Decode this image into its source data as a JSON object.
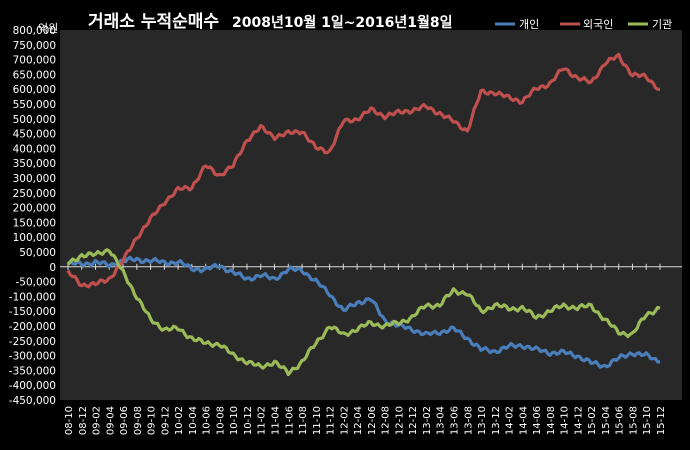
{
  "chart_data": {
    "type": "line",
    "title": "거래소 누적순매수",
    "subtitle": "2008년10월 1일~2016년1월8일",
    "ylabel": "억원",
    "ylim": [
      -450000,
      800000
    ],
    "y_ticks": [
      800000,
      750000,
      700000,
      650000,
      600000,
      550000,
      500000,
      450000,
      400000,
      350000,
      300000,
      250000,
      200000,
      150000,
      100000,
      50000,
      0,
      -50000,
      -100000,
      -150000,
      -200000,
      -250000,
      -300000,
      -350000,
      -400000,
      -450000
    ],
    "y_tick_labels": [
      "800,000",
      "750,000",
      "700,000",
      "650,000",
      "600,000",
      "550,000",
      "500,000",
      "450,000",
      "400,000",
      "350,000",
      "300,000",
      "250,000",
      "200,000",
      "150,000",
      "100,000",
      "50,000",
      "0",
      "-50,000",
      "-100,000",
      "-150,000",
      "-200,000",
      "-250,000",
      "-300,000",
      "-350,000",
      "-400,000",
      "-450,000"
    ],
    "categories": [
      "08-10",
      "08-12",
      "09-02",
      "09-04",
      "09-06",
      "09-08",
      "09-10",
      "09-12",
      "10-02",
      "10-04",
      "10-06",
      "10-08",
      "10-10",
      "10-12",
      "11-02",
      "11-04",
      "11-06",
      "11-08",
      "11-10",
      "11-12",
      "12-02",
      "12-04",
      "12-06",
      "12-08",
      "12-10",
      "12-12",
      "13-02",
      "13-04",
      "13-06",
      "13-08",
      "13-10",
      "13-12",
      "14-02",
      "14-04",
      "14-06",
      "14-08",
      "14-10",
      "14-12",
      "15-02",
      "15-04",
      "15-06",
      "15-08",
      "15-10",
      "15-12"
    ],
    "grid": false,
    "legend_position": "top-right",
    "series": [
      {
        "name": "개인",
        "color": "#4a7ebb",
        "values": [
          10000,
          10000,
          15000,
          5000,
          20000,
          25000,
          20000,
          15000,
          15000,
          -5000,
          -10000,
          5000,
          -20000,
          -40000,
          -30000,
          -40000,
          -10000,
          -10000,
          -50000,
          -90000,
          -150000,
          -120000,
          -110000,
          -180000,
          -200000,
          -210000,
          -230000,
          -220000,
          -210000,
          -240000,
          -280000,
          -285000,
          -270000,
          -265000,
          -280000,
          -290000,
          -290000,
          -300000,
          -325000,
          -335000,
          -310000,
          -290000,
          -300000,
          -320000
        ]
      },
      {
        "name": "외국인",
        "color": "#c0504d",
        "values": [
          -20000,
          -60000,
          -60000,
          -40000,
          20000,
          100000,
          160000,
          220000,
          260000,
          270000,
          340000,
          310000,
          340000,
          430000,
          470000,
          440000,
          450000,
          460000,
          400000,
          390000,
          490000,
          500000,
          530000,
          510000,
          520000,
          530000,
          540000,
          520000,
          490000,
          460000,
          590000,
          590000,
          570000,
          560000,
          600000,
          620000,
          670000,
          640000,
          620000,
          690000,
          710000,
          650000,
          640000,
          600000
        ]
      },
      {
        "name": "기관",
        "color": "#9bbb59",
        "values": [
          10000,
          40000,
          40000,
          60000,
          -20000,
          -100000,
          -180000,
          -210000,
          -210000,
          -240000,
          -260000,
          -260000,
          -300000,
          -320000,
          -340000,
          -320000,
          -360000,
          -320000,
          -260000,
          -200000,
          -230000,
          -210000,
          -190000,
          -200000,
          -190000,
          -170000,
          -130000,
          -130000,
          -80000,
          -90000,
          -150000,
          -130000,
          -140000,
          -140000,
          -170000,
          -150000,
          -130000,
          -140000,
          -130000,
          -180000,
          -220000,
          -230000,
          -160000,
          -140000
        ]
      }
    ]
  }
}
